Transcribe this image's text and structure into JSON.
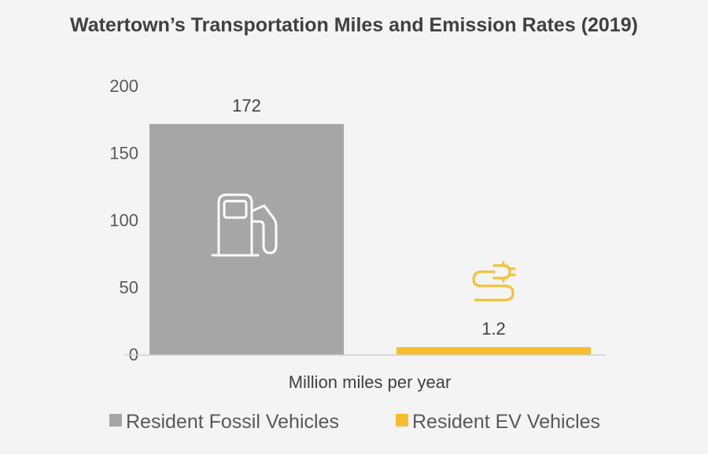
{
  "chart_data": {
    "type": "bar",
    "title": "Watertown’s Transportation Miles and Emission Rates (2019)",
    "xlabel": "Million miles per year",
    "ylabel": "",
    "ylim": [
      0,
      200
    ],
    "yticks": [
      0,
      50,
      100,
      150,
      200
    ],
    "categories": [
      "Resident Fossil Vehicles",
      "Resident EV Vehicles"
    ],
    "values": [
      172,
      1.2
    ],
    "data_labels": [
      "172",
      "1.2"
    ],
    "colors": [
      "#a6a6a6",
      "#f6be2c"
    ],
    "icons": [
      "fuel-pump-icon",
      "ev-plug-icon"
    ],
    "legend": {
      "position": "bottom",
      "items": [
        {
          "label": "Resident Fossil Vehicles",
          "color": "#a6a6a6"
        },
        {
          "label": "Resident EV Vehicles",
          "color": "#f6be2c"
        }
      ]
    },
    "grid": false
  }
}
